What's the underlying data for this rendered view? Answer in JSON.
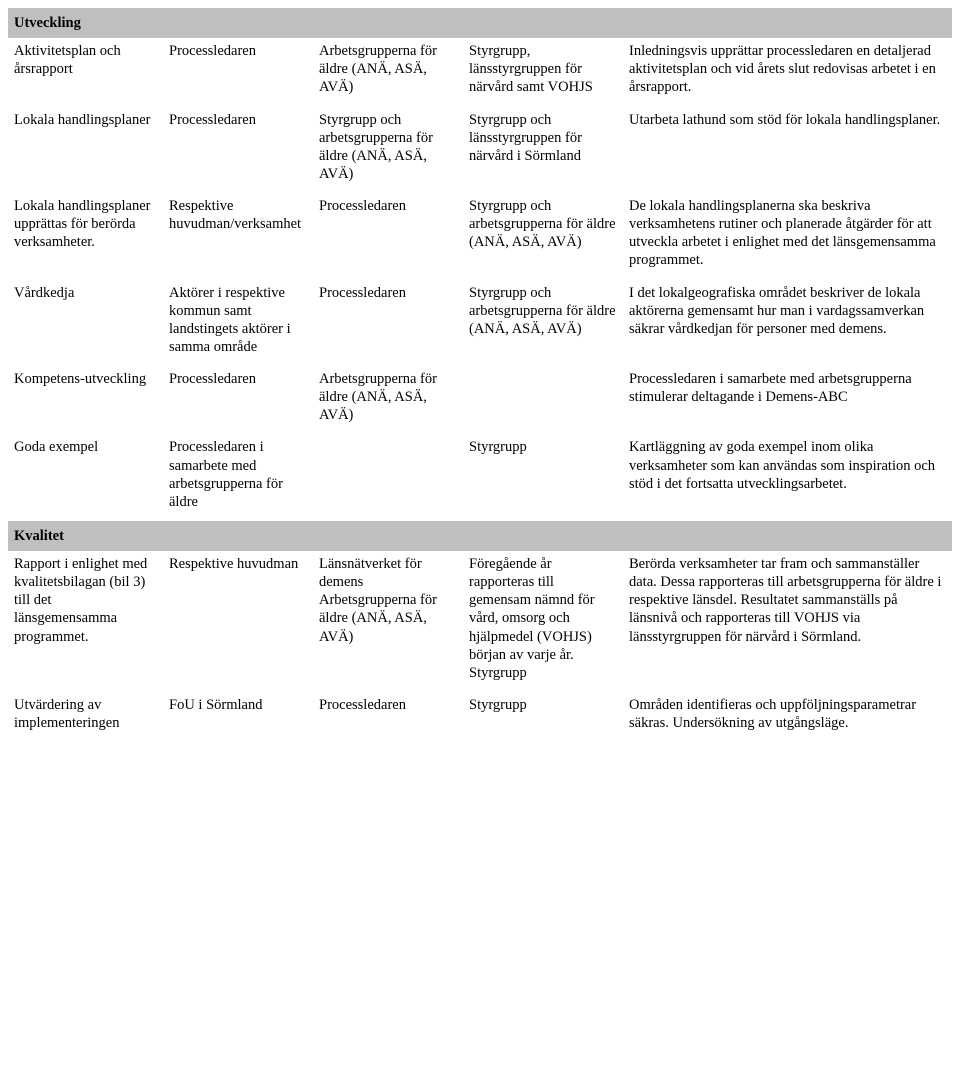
{
  "sections": [
    {
      "header": "Utveckling",
      "rows": [
        {
          "c1": "Aktivitetsplan och årsrapport",
          "c2": "Processledaren",
          "c3": "Arbetsgrupperna för äldre (ANÄ, ASÄ, AVÄ)",
          "c4": "Styrgrupp, länsstyrgruppen för närvård samt VOHJS",
          "c5": "Inledningsvis upprättar processledaren en detaljerad aktivitetsplan och vid årets slut redovisas arbetet i en årsrapport."
        },
        {
          "c1": "Lokala handlingsplaner",
          "c2": "Processledaren",
          "c3": "Styrgrupp och arbetsgrupperna för äldre (ANÄ, ASÄ, AVÄ)",
          "c4": "Styrgrupp och länsstyrgruppen för närvård i Sörmland",
          "c5": "Utarbeta lathund som stöd för lokala handlingsplaner."
        },
        {
          "c1": "Lokala handlingsplaner upprättas för berörda verksamheter.",
          "c2": "Respektive huvudman/verksamhet",
          "c3": "Processledaren",
          "c4": "Styrgrupp och arbetsgrupperna för äldre (ANÄ, ASÄ, AVÄ)",
          "c5": "De lokala handlingsplanerna ska beskriva verksamhetens rutiner och planerade åtgärder för att utveckla arbetet i enlighet med det länsgemensamma programmet."
        },
        {
          "c1": "Vårdkedja",
          "c2": "Aktörer i respektive kommun samt landstingets aktörer i samma område",
          "c3": "Processledaren",
          "c4": "Styrgrupp och arbetsgrupperna för äldre (ANÄ, ASÄ, AVÄ)",
          "c5": "I det lokalgeografiska området beskriver de lokala aktörerna gemensamt hur man i vardagssamverkan säkrar vårdkedjan för personer med demens."
        },
        {
          "c1": "Kompetens-utveckling",
          "c2": "Processledaren",
          "c3": "Arbetsgrupperna för äldre (ANÄ, ASÄ, AVÄ)",
          "c4": "",
          "c5": "Processledaren i samarbete med arbetsgrupperna stimulerar deltagande i Demens-ABC"
        },
        {
          "c1": "Goda exempel",
          "c2": "Processledaren i samarbete med arbetsgrupperna för äldre",
          "c3": "",
          "c4": "Styrgrupp",
          "c5": "Kartläggning av goda exempel inom olika verksamheter som kan användas som inspiration och stöd i det fortsatta utvecklingsarbetet."
        }
      ]
    },
    {
      "header": "Kvalitet",
      "rows": [
        {
          "c1": "Rapport i enlighet med kvalitetsbilagan (bil 3) till det länsgemensamma programmet.",
          "c2": "Respektive huvudman",
          "c3": "Länsnätverket för demens Arbetsgrupperna för äldre (ANÄ, ASÄ, AVÄ)",
          "c4": "Föregående år rapporteras till gemensam nämnd för vård, omsorg och hjälpmedel (VOHJS) början av varje år. Styrgrupp",
          "c5": "Berörda verksamheter tar fram och sammanställer data. Dessa rapporteras till arbetsgrupperna för äldre i respektive länsdel. Resultatet sammanställs på länsnivå och rapporteras till VOHJS via länsstyrgruppen för närvård i Sörmland."
        },
        {
          "c1": "Utvärdering av implementeringen",
          "c2": "FoU i Sörmland",
          "c3": "Processledaren",
          "c4": "Styrgrupp",
          "c5": "Områden identifieras och uppföljningsparametrar säkras. Undersökning av utgångsläge."
        }
      ]
    }
  ]
}
